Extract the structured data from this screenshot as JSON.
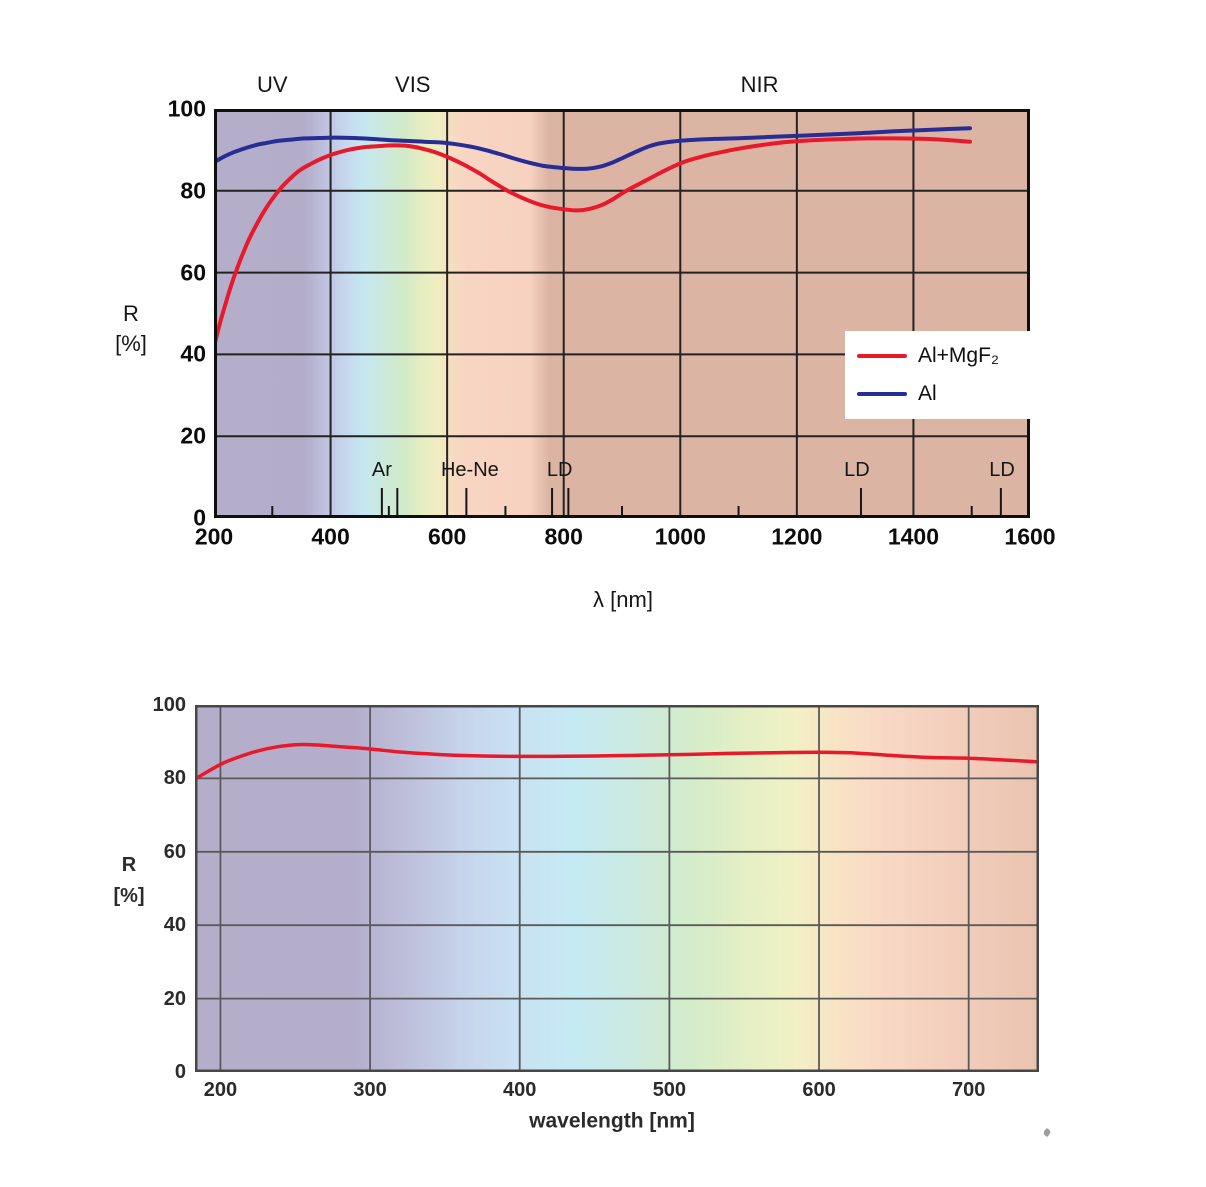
{
  "page": {
    "background": "#ffffff"
  },
  "chart_data": [
    {
      "type": "line",
      "title": "",
      "xlabel": "λ [nm]",
      "ylabel": "R [%]",
      "ylabel_lines": [
        "R",
        "[%]"
      ],
      "xlim": [
        200,
        1600
      ],
      "ylim": [
        0,
        100
      ],
      "x_ticks": [
        200,
        400,
        600,
        800,
        1000,
        1200,
        1400,
        1600
      ],
      "x_minor_ticks": [
        300,
        500,
        700,
        900,
        1100,
        1500
      ],
      "y_ticks": [
        0,
        20,
        40,
        60,
        80,
        100
      ],
      "grid": true,
      "legend_position": "middle-right",
      "region_labels": [
        {
          "text": "UV",
          "nm": 300
        },
        {
          "text": "VIS",
          "nm": 541
        },
        {
          "text": "NIR",
          "nm": 1136
        }
      ],
      "laser_markers": [
        {
          "label": "Ar",
          "label_nm": 488,
          "lines_nm": [
            488,
            514.5
          ]
        },
        {
          "label": "He-Ne",
          "label_nm": 639,
          "lines_nm": [
            633
          ]
        },
        {
          "label": "LD",
          "label_nm": 793,
          "lines_nm": [
            780,
            808
          ]
        },
        {
          "label": "LD",
          "label_nm": 1303,
          "lines_nm": [
            1310
          ]
        },
        {
          "label": "LD",
          "label_nm": 1552,
          "lines_nm": [
            1550
          ]
        }
      ],
      "legend": {
        "entries": [
          {
            "label": "Al+MgF₂",
            "color": "#e8192b"
          },
          {
            "label": "Al",
            "color": "#282d96"
          }
        ]
      },
      "spectrum_background": [
        [
          200,
          "#b5aecb"
        ],
        [
          355,
          "#b3adca"
        ],
        [
          390,
          "#bec1de"
        ],
        [
          422,
          "#c6d5ec"
        ],
        [
          455,
          "#c5e7f2"
        ],
        [
          492,
          "#cce9dc"
        ],
        [
          528,
          "#d3eac7"
        ],
        [
          560,
          "#e7eec1"
        ],
        [
          586,
          "#f2ecc1"
        ],
        [
          610,
          "#f6dcc1"
        ],
        [
          636,
          "#f8d4c2"
        ],
        [
          742,
          "#f7d2c0"
        ],
        [
          775,
          "#dcb4a4"
        ],
        [
          1600,
          "#dcb4a4"
        ]
      ],
      "series": [
        {
          "name": "Al+MgF₂",
          "color": "#e8192b",
          "points": [
            [
              200,
              42
            ],
            [
              210,
              47.5
            ],
            [
              220,
              52.5
            ],
            [
              232,
              58
            ],
            [
              245,
              63
            ],
            [
              258,
              67.5
            ],
            [
              272,
              71.5
            ],
            [
              286,
              75
            ],
            [
              300,
              78
            ],
            [
              315,
              80.7
            ],
            [
              330,
              82.9
            ],
            [
              347,
              85
            ],
            [
              365,
              86.5
            ],
            [
              385,
              87.9
            ],
            [
              405,
              89
            ],
            [
              430,
              90
            ],
            [
              455,
              90.6
            ],
            [
              480,
              90.9
            ],
            [
              505,
              91.1
            ],
            [
              530,
              91
            ],
            [
              555,
              90.4
            ],
            [
              580,
              89.4
            ],
            [
              605,
              88
            ],
            [
              630,
              86.3
            ],
            [
              655,
              84.3
            ],
            [
              680,
              82
            ],
            [
              705,
              79.9
            ],
            [
              730,
              78.2
            ],
            [
              755,
              76.8
            ],
            [
              780,
              75.9
            ],
            [
              805,
              75.4
            ],
            [
              825,
              75.2
            ],
            [
              845,
              75.6
            ],
            [
              865,
              76.5
            ],
            [
              885,
              78
            ],
            [
              905,
              79.8
            ],
            [
              930,
              81.7
            ],
            [
              955,
              83.6
            ],
            [
              980,
              85.4
            ],
            [
              1005,
              87
            ],
            [
              1035,
              88.3
            ],
            [
              1065,
              89.3
            ],
            [
              1100,
              90.3
            ],
            [
              1140,
              91.2
            ],
            [
              1180,
              91.9
            ],
            [
              1220,
              92.3
            ],
            [
              1270,
              92.6
            ],
            [
              1320,
              92.8
            ],
            [
              1370,
              92.8
            ],
            [
              1420,
              92.7
            ],
            [
              1460,
              92.4
            ],
            [
              1497,
              92
            ]
          ]
        },
        {
          "name": "Al",
          "color": "#282d96",
          "points": [
            [
              200,
              87
            ],
            [
              215,
              88.2
            ],
            [
              230,
              89.2
            ],
            [
              245,
              90
            ],
            [
              260,
              90.7
            ],
            [
              275,
              91.3
            ],
            [
              290,
              91.7
            ],
            [
              310,
              92.2
            ],
            [
              330,
              92.5
            ],
            [
              355,
              92.8
            ],
            [
              380,
              92.9
            ],
            [
              410,
              93
            ],
            [
              440,
              92.9
            ],
            [
              470,
              92.7
            ],
            [
              500,
              92.4
            ],
            [
              530,
              92.2
            ],
            [
              560,
              92
            ],
            [
              590,
              91.8
            ],
            [
              615,
              91.4
            ],
            [
              640,
              90.8
            ],
            [
              665,
              90
            ],
            [
              690,
              89
            ],
            [
              715,
              87.9
            ],
            [
              740,
              86.9
            ],
            [
              765,
              86.1
            ],
            [
              790,
              85.7
            ],
            [
              815,
              85.4
            ],
            [
              840,
              85.4
            ],
            [
              862,
              85.9
            ],
            [
              885,
              87
            ],
            [
              905,
              88.3
            ],
            [
              925,
              89.6
            ],
            [
              945,
              90.8
            ],
            [
              965,
              91.6
            ],
            [
              990,
              92.1
            ],
            [
              1015,
              92.4
            ],
            [
              1060,
              92.7
            ],
            [
              1110,
              92.9
            ],
            [
              1160,
              93.2
            ],
            [
              1210,
              93.5
            ],
            [
              1260,
              93.8
            ],
            [
              1310,
              94.1
            ],
            [
              1360,
              94.5
            ],
            [
              1410,
              94.8
            ],
            [
              1460,
              95.1
            ],
            [
              1497,
              95.3
            ]
          ]
        }
      ]
    },
    {
      "type": "line",
      "title": "",
      "xlabel": "wavelength [nm]",
      "ylabel": "R [%]",
      "ylabel_lines": [
        "R",
        "[%]"
      ],
      "xlim": [
        183,
        747
      ],
      "ylim": [
        0,
        100
      ],
      "x_ticks": [
        200,
        300,
        400,
        500,
        600,
        700
      ],
      "x_minor_ticks": [],
      "y_ticks": [
        0,
        20,
        40,
        60,
        80,
        100
      ],
      "grid": true,
      "region_labels": [],
      "laser_markers": [],
      "spectrum_background": [
        [
          183,
          "#b5aecb"
        ],
        [
          288,
          "#b4aecb"
        ],
        [
          326,
          "#bec0dc"
        ],
        [
          360,
          "#c6d3ea"
        ],
        [
          396,
          "#c9e1f2"
        ],
        [
          436,
          "#c6eaf4"
        ],
        [
          476,
          "#cbeae0"
        ],
        [
          514,
          "#d4ecca"
        ],
        [
          550,
          "#e4efc5"
        ],
        [
          584,
          "#f2f0c5"
        ],
        [
          612,
          "#f8e3c5"
        ],
        [
          644,
          "#f8d8c5"
        ],
        [
          700,
          "#f2ccba"
        ],
        [
          747,
          "#eac3b1"
        ]
      ],
      "series": [
        {
          "name": "Al+MgF₂",
          "color": "#e8192b",
          "points": [
            [
              183,
              79.8
            ],
            [
              192,
              82
            ],
            [
              202,
              84.2
            ],
            [
              212,
              85.8
            ],
            [
              225,
              87.5
            ],
            [
              238,
              88.6
            ],
            [
              252,
              89.2
            ],
            [
              265,
              89.1
            ],
            [
              278,
              88.7
            ],
            [
              292,
              88.3
            ],
            [
              305,
              87.8
            ],
            [
              320,
              87.2
            ],
            [
              338,
              86.7
            ],
            [
              356,
              86.3
            ],
            [
              375,
              86.1
            ],
            [
              395,
              86
            ],
            [
              420,
              86
            ],
            [
              450,
              86.1
            ],
            [
              480,
              86.3
            ],
            [
              510,
              86.5
            ],
            [
              540,
              86.8
            ],
            [
              570,
              87
            ],
            [
              600,
              87.1
            ],
            [
              625,
              86.9
            ],
            [
              650,
              86.2
            ],
            [
              675,
              85.7
            ],
            [
              700,
              85.5
            ],
            [
              725,
              85
            ],
            [
              747,
              84.5
            ]
          ]
        }
      ]
    }
  ]
}
